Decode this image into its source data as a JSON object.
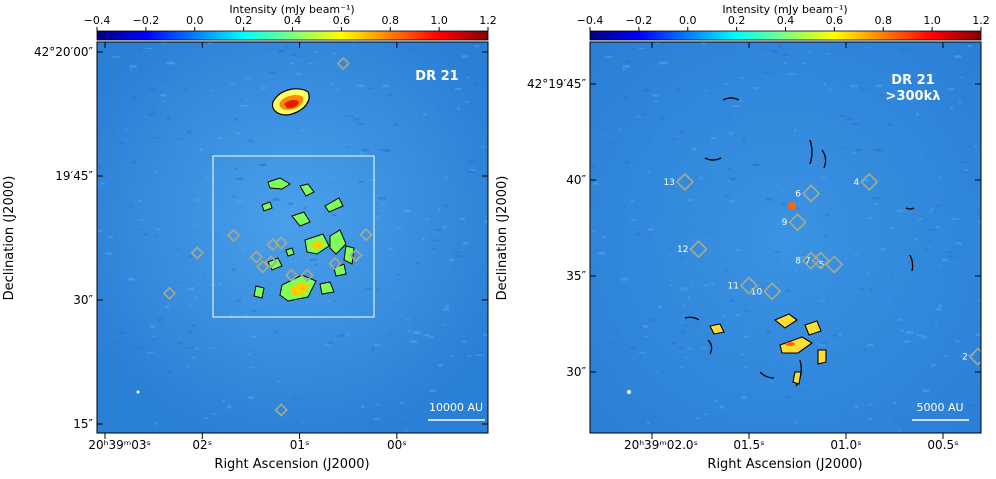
{
  "colors": {
    "colormap": [
      "#00007f",
      "#0000ff",
      "#007fff",
      "#00ffff",
      "#7fff7f",
      "#ffff00",
      "#ff7f00",
      "#ff0000",
      "#7f0000"
    ],
    "background": "#2d84d9",
    "marker": "#a8a98a",
    "frame": "#ffffff"
  },
  "chart_data": [
    {
      "type": "heatmap",
      "id": "left",
      "title": "DR 21",
      "colorbar": {
        "label": "Intensity (mJy beam⁻¹)",
        "ticks": [
          "−0.4",
          "−0.2",
          "0.0",
          "0.2",
          "0.4",
          "0.6",
          "0.8",
          "1.0",
          "1.2"
        ],
        "range": [
          -0.4,
          1.2
        ]
      },
      "xlabel": "Right Ascension (J2000)",
      "ylabel": "Declination (J2000)",
      "xticks": [
        {
          "label": "20ʰ39ᵐ03ˢ",
          "ra_offset_s": 0
        },
        {
          "label": "02ˢ",
          "ra_offset_s": 1
        },
        {
          "label": "01ˢ",
          "ra_offset_s": 2
        },
        {
          "label": "00ˢ",
          "ra_offset_s": 3
        }
      ],
      "yticks": [
        {
          "label": "42°20′00″",
          "dec_arcsec": 0
        },
        {
          "label": "19′45″",
          "dec_arcsec": -15
        },
        {
          "label": "30″",
          "dec_arcsec": -30
        },
        {
          "label": "15″",
          "dec_arcsec": -45
        }
      ],
      "scalebar_label": "10000 AU",
      "zoom_box": true,
      "sources": [
        {
          "ra": 2.38,
          "dec": -1.4
        },
        {
          "ra": 2.6,
          "dec": -22.1
        },
        {
          "ra": 2.5,
          "dec": -24.6
        },
        {
          "ra": 2.3,
          "dec": -25.6
        },
        {
          "ra": 2.03,
          "dec": -27.0
        },
        {
          "ra": 1.88,
          "dec": -27.0
        },
        {
          "ra": 1.78,
          "dec": -23.1
        },
        {
          "ra": 1.7,
          "dec": -23.3
        },
        {
          "ra": 1.68,
          "dec": -25.4
        },
        {
          "ra": 1.6,
          "dec": -26.0
        },
        {
          "ra": 1.54,
          "dec": -24.8
        },
        {
          "ra": 1.32,
          "dec": -22.2
        },
        {
          "ra": 0.97,
          "dec": -24.3
        },
        {
          "ra": 0.7,
          "dec": -29.2
        },
        {
          "ra": 1.78,
          "dec": -43.3
        }
      ]
    },
    {
      "type": "heatmap",
      "id": "right",
      "title": "DR 21",
      "subtitle": ">300kλ",
      "colorbar": {
        "label": "Intensity (mJy beam⁻¹)",
        "ticks": [
          "−0.4",
          "−0.2",
          "0.0",
          "0.2",
          "0.4",
          "0.6",
          "0.8",
          "1.0",
          "1.2"
        ],
        "range": [
          -0.4,
          1.2
        ]
      },
      "xlabel": "Right Ascension (J2000)",
      "ylabel": "Declination (J2000)",
      "xticks": [
        {
          "label": "20ʰ39ᵐ02.0ˢ",
          "ra_offset_s": 0
        },
        {
          "label": "01.5ˢ",
          "ra_offset_s": 0.5
        },
        {
          "label": "01.0ˢ",
          "ra_offset_s": 1.0
        },
        {
          "label": "00.5ˢ",
          "ra_offset_s": 1.5
        }
      ],
      "yticks": [
        {
          "label": "42°19′45″",
          "dec_arcsec": 0
        },
        {
          "label": "40″",
          "dec_arcsec": -5
        },
        {
          "label": "35″",
          "dec_arcsec": -10
        },
        {
          "label": "30″",
          "dec_arcsec": -15
        }
      ],
      "scalebar_label": "5000 AU",
      "sources": [
        {
          "id": "2",
          "ra": 1.69,
          "dec": -14.2
        },
        {
          "id": "4",
          "ra": 1.13,
          "dec": -5.1
        },
        {
          "id": "5",
          "ra": 0.95,
          "dec": -9.4
        },
        {
          "id": "6",
          "ra": 0.83,
          "dec": -5.7
        },
        {
          "id": "7",
          "ra": 0.88,
          "dec": -9.2
        },
        {
          "id": "8",
          "ra": 0.83,
          "dec": -9.2
        },
        {
          "id": "9",
          "ra": 0.76,
          "dec": -7.2
        },
        {
          "id": "10",
          "ra": 0.63,
          "dec": -10.8
        },
        {
          "id": "11",
          "ra": 0.51,
          "dec": -10.5
        },
        {
          "id": "12",
          "ra": 0.25,
          "dec": -8.6
        },
        {
          "id": "13",
          "ra": 0.18,
          "dec": -5.1
        }
      ]
    }
  ]
}
